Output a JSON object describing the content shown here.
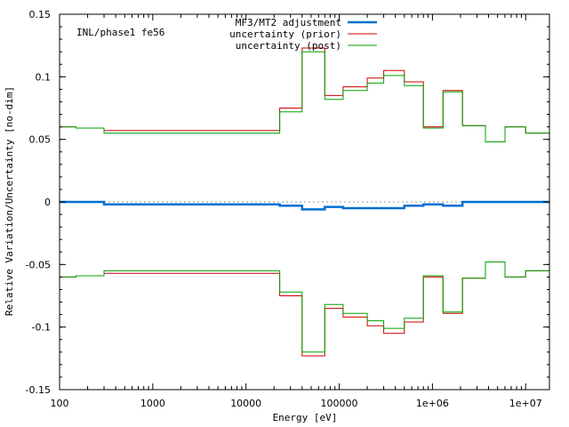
{
  "chart_data": {
    "type": "line",
    "step": true,
    "x_scale": "log",
    "xlim": [
      100,
      18000000
    ],
    "ylim": [
      -0.15,
      0.15
    ],
    "xlabel": "Energy [eV]",
    "ylabel": "Relative Variation/Uncertainty [no-dim]",
    "annotation": "INL/phase1 fe56",
    "zero_line": true,
    "legend_position": "top-center",
    "x_ticks": [
      {
        "value": 100,
        "label": "100"
      },
      {
        "value": 1000,
        "label": "1000"
      },
      {
        "value": 10000,
        "label": "10000"
      },
      {
        "value": 100000,
        "label": "100000"
      },
      {
        "value": 1000000,
        "label": "1e+06"
      },
      {
        "value": 10000000,
        "label": "1e+07"
      }
    ],
    "y_ticks": [
      {
        "value": 0.15,
        "label": "0.15"
      },
      {
        "value": 0.1,
        "label": "0.1"
      },
      {
        "value": 0.05,
        "label": "0.05"
      },
      {
        "value": 0,
        "label": "0"
      },
      {
        "value": -0.05,
        "label": "-0.05"
      },
      {
        "value": -0.1,
        "label": "-0.1"
      },
      {
        "value": -0.15,
        "label": "-0.15"
      }
    ],
    "bin_edges": [
      100,
      150,
      300,
      23000,
      40000,
      70000,
      110000,
      200000,
      300000,
      500000,
      800000,
      1300000,
      2100000,
      3700000,
      6000000,
      10000000,
      18000000
    ],
    "series": [
      {
        "name": "MF3/MT2 adjustment",
        "color": "#0070d0",
        "width": 2.5,
        "mirror": false,
        "values": [
          0.0,
          0.0,
          -0.002,
          -0.003,
          -0.006,
          -0.004,
          -0.005,
          -0.005,
          -0.005,
          -0.003,
          -0.002,
          -0.003,
          0.0,
          0.0,
          0.0,
          0.0
        ]
      },
      {
        "name": "uncertainty (prior)",
        "color": "#cc0000",
        "width": 1,
        "mirror": true,
        "values": [
          0.06,
          0.059,
          0.057,
          0.075,
          0.123,
          0.085,
          0.092,
          0.099,
          0.105,
          0.096,
          0.06,
          0.089,
          0.061,
          0.048,
          0.06,
          0.055
        ]
      },
      {
        "name": "uncertainty (post)",
        "color": "#00a000",
        "width": 1,
        "mirror": true,
        "values": [
          0.06,
          0.059,
          0.055,
          0.072,
          0.12,
          0.082,
          0.089,
          0.095,
          0.101,
          0.093,
          0.059,
          0.088,
          0.061,
          0.048,
          0.06,
          0.055
        ]
      }
    ]
  }
}
